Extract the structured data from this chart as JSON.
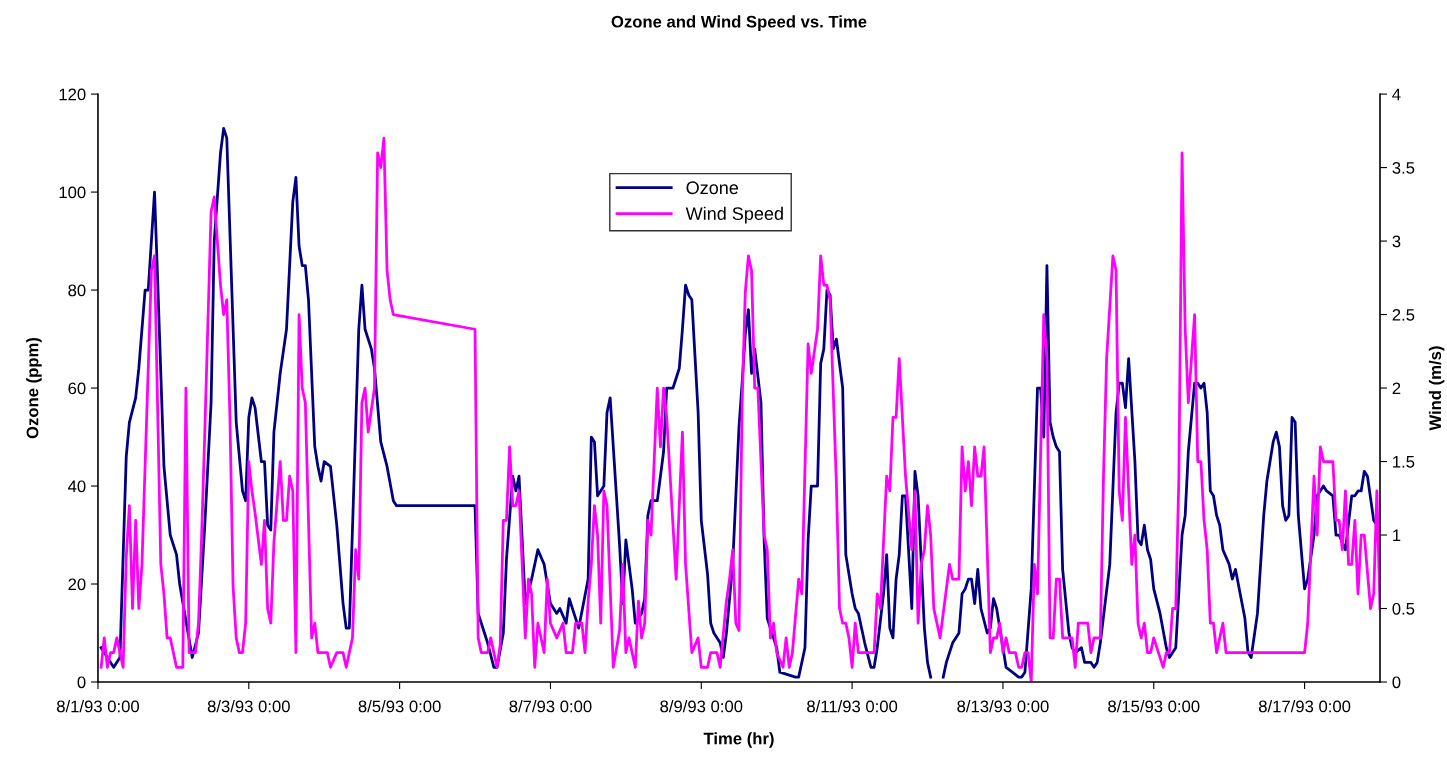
{
  "chart_data": {
    "type": "line",
    "title": "Ozone and Wind Speed vs. Time",
    "xlabel": "Time (hr)",
    "ylabel": "Ozone (ppm)",
    "y2label": "Wind (m/s)",
    "xlim": [
      "1993-08-01T00:00",
      "1993-08-18T00:00"
    ],
    "xticks": [
      {
        "value": "1993-08-01T00:00",
        "label": "8/1/93 0:00"
      },
      {
        "value": "1993-08-03T00:00",
        "label": "8/3/93 0:00"
      },
      {
        "value": "1993-08-05T00:00",
        "label": "8/5/93 0:00"
      },
      {
        "value": "1993-08-07T00:00",
        "label": "8/7/93 0:00"
      },
      {
        "value": "1993-08-09T00:00",
        "label": "8/9/93 0:00"
      },
      {
        "value": "1993-08-11T00:00",
        "label": "8/11/93 0:00"
      },
      {
        "value": "1993-08-13T00:00",
        "label": "8/13/93 0:00"
      },
      {
        "value": "1993-08-15T00:00",
        "label": "8/15/93 0:00"
      },
      {
        "value": "1993-08-17T00:00",
        "label": "8/17/93 0:00"
      }
    ],
    "ylim": [
      0,
      120
    ],
    "yticks": [
      0,
      20,
      40,
      60,
      80,
      100,
      120
    ],
    "y2lim": [
      0,
      4
    ],
    "y2ticks": [
      0,
      0.5,
      1,
      1.5,
      2,
      2.5,
      3,
      3.5,
      4
    ],
    "grid": false,
    "legend": "top",
    "marker": "none",
    "line_style": "solid",
    "series": [
      {
        "name": "Ozone",
        "color": "#000080",
        "x": [
          "1993-08-01T01:00",
          "1993-08-01T05:00",
          "1993-08-01T07:00",
          "1993-08-01T09:00",
          "1993-08-01T10:00",
          "1993-08-01T12:00",
          "1993-08-01T13:00",
          "1993-08-01T15:00",
          "1993-08-01T16:00",
          "1993-08-01T18:00",
          "1993-08-01T19:00",
          "1993-08-01T21:00",
          "1993-08-01T23:00",
          "1993-08-02T01:00",
          "1993-08-02T02:00",
          "1993-08-02T06:00",
          "1993-08-02T08:00",
          "1993-08-02T10:00",
          "1993-08-02T12:00",
          "1993-08-02T13:00",
          "1993-08-02T15:00",
          "1993-08-02T16:00",
          "1993-08-02T17:00",
          "1993-08-02T20:00",
          "1993-08-02T22:00",
          "1993-08-02T23:00",
          "1993-08-03T00:00",
          "1993-08-03T01:00",
          "1993-08-03T02:00",
          "1993-08-03T04:00",
          "1993-08-03T05:00",
          "1993-08-03T06:00",
          "1993-08-03T07:00",
          "1993-08-03T08:00",
          "1993-08-03T10:00",
          "1993-08-03T12:00",
          "1993-08-03T14:00",
          "1993-08-03T15:00",
          "1993-08-03T16:00",
          "1993-08-03T17:00",
          "1993-08-03T18:00",
          "1993-08-03T19:00",
          "1993-08-03T21:00",
          "1993-08-03T22:00",
          "1993-08-03T23:00",
          "1993-08-04T00:00",
          "1993-08-04T02:00",
          "1993-08-04T04:00",
          "1993-08-04T06:00",
          "1993-08-04T07:00",
          "1993-08-04T08:00",
          "1993-08-04T11:00",
          "1993-08-04T12:00",
          "1993-08-04T13:00",
          "1993-08-04T15:00",
          "1993-08-04T16:00",
          "1993-08-04T18:00",
          "1993-08-04T20:00",
          "1993-08-04T22:00",
          "1993-08-04T23:00",
          "1993-08-06T00:00",
          "1993-08-06T01:00",
          "1993-08-06T03:00",
          "1993-08-06T04:00",
          "1993-08-06T06:00",
          "1993-08-06T07:00",
          "1993-08-06T09:00",
          "1993-08-06T10:00",
          "1993-08-06T12:00",
          "1993-08-06T13:00",
          "1993-08-06T14:00",
          "1993-08-06T16:00",
          "1993-08-06T18:00",
          "1993-08-06T20:00",
          "1993-08-06T22:00",
          "1993-08-07T00:00",
          "1993-08-07T02:00",
          "1993-08-07T03:00",
          "1993-08-07T05:00",
          "1993-08-07T06:00",
          "1993-08-07T09:00",
          "1993-08-07T12:00",
          "1993-08-07T13:00",
          "1993-08-07T14:00",
          "1993-08-07T15:00",
          "1993-08-07T17:00",
          "1993-08-07T18:00",
          "1993-08-07T19:00",
          "1993-08-07T22:00",
          "1993-08-07T23:00",
          "1993-08-08T00:00",
          "1993-08-08T02:00",
          "1993-08-08T03:00",
          "1993-08-08T05:00",
          "1993-08-08T06:00",
          "1993-08-08T07:00",
          "1993-08-08T08:00",
          "1993-08-08T10:00",
          "1993-08-08T12:00",
          "1993-08-08T13:00",
          "1993-08-08T15:00",
          "1993-08-08T16:00",
          "1993-08-08T17:00",
          "1993-08-08T18:00",
          "1993-08-08T19:00",
          "1993-08-08T20:00",
          "1993-08-08T21:00",
          "1993-08-08T23:00",
          "1993-08-09T00:00",
          "1993-08-09T02:00",
          "1993-08-09T03:00",
          "1993-08-09T04:00",
          "1993-08-09T06:00",
          "1993-08-09T07:00",
          "1993-08-09T08:00",
          "1993-08-09T10:00",
          "1993-08-09T12:00",
          "1993-08-09T13:00",
          "1993-08-09T14:00",
          "1993-08-09T15:00",
          "1993-08-09T16:00",
          "1993-08-09T17:00",
          "1993-08-09T19:00",
          "1993-08-09T20:00",
          "1993-08-09T21:00",
          "1993-08-10T00:00",
          "1993-08-10T01:00",
          "1993-08-10T06:00",
          "1993-08-10T07:00",
          "1993-08-10T09:00",
          "1993-08-10T10:00",
          "1993-08-10T11:00",
          "1993-08-10T13:00",
          "1993-08-10T14:00",
          "1993-08-10T15:00",
          "1993-08-10T16:00",
          "1993-08-10T17:00",
          "1993-08-10T18:00",
          "1993-08-10T19:00",
          "1993-08-10T21:00",
          "1993-08-10T22:00",
          "1993-08-11T00:00",
          "1993-08-11T01:00",
          "1993-08-11T02:00",
          "1993-08-11T04:00",
          "1993-08-11T06:00",
          "1993-08-11T07:00",
          "1993-08-11T08:00",
          "1993-08-11T10:00",
          "1993-08-11T11:00",
          "1993-08-11T12:00",
          "1993-08-11T13:00",
          "1993-08-11T14:00",
          "1993-08-11T15:00",
          "1993-08-11T16:00",
          "1993-08-11T17:00",
          "1993-08-11T19:00",
          "1993-08-11T20:00",
          "1993-08-11T21:00",
          "1993-08-11T23:00",
          "1993-08-12T00:00",
          "1993-08-12T01:00",
          "1993-08-12T03:00",
          "1993-08-12T05:00",
          "1993-08-12T06:00",
          "1993-08-12T08:00",
          "1993-08-12T09:00",
          "1993-08-12T10:00",
          "1993-08-12T11:00",
          "1993-08-12T12:00",
          "1993-08-12T13:00",
          "1993-08-12T14:00",
          "1993-08-12T15:00",
          "1993-08-12T16:00",
          "1993-08-12T17:00",
          "1993-08-12T19:00",
          "1993-08-12T20:00",
          "1993-08-12T21:00",
          "1993-08-12T22:00",
          "1993-08-13T00:00",
          "1993-08-13T01:00",
          "1993-08-13T03:00",
          "1993-08-13T05:00",
          "1993-08-13T06:00",
          "1993-08-13T07:00",
          "1993-08-13T09:00",
          "1993-08-13T11:00",
          "1993-08-13T12:00",
          "1993-08-13T13:00",
          "1993-08-13T14:00",
          "1993-08-13T15:00",
          "1993-08-13T16:00",
          "1993-08-13T17:00",
          "1993-08-13T18:00",
          "1993-08-13T19:00",
          "1993-08-13T21:00",
          "1993-08-13T22:00",
          "1993-08-13T23:00",
          "1993-08-14T01:00",
          "1993-08-14T02:00",
          "1993-08-14T04:00",
          "1993-08-14T05:00",
          "1993-08-14T06:00",
          "1993-08-14T07:00",
          "1993-08-14T10:00",
          "1993-08-14T12:00",
          "1993-08-14T13:00",
          "1993-08-14T14:00",
          "1993-08-14T15:00",
          "1993-08-14T16:00",
          "1993-08-14T18:00",
          "1993-08-14T19:00",
          "1993-08-14T20:00",
          "1993-08-14T21:00",
          "1993-08-14T22:00",
          "1993-08-14T23:00",
          "1993-08-15T00:00",
          "1993-08-15T02:00",
          "1993-08-15T04:00",
          "1993-08-15T05:00",
          "1993-08-15T06:00",
          "1993-08-15T07:00",
          "1993-08-15T09:00",
          "1993-08-15T10:00",
          "1993-08-15T11:00",
          "1993-08-15T13:00",
          "1993-08-15T14:00",
          "1993-08-15T15:00",
          "1993-08-15T16:00",
          "1993-08-15T17:00",
          "1993-08-15T18:00",
          "1993-08-15T19:00",
          "1993-08-15T20:00",
          "1993-08-15T21:00",
          "1993-08-15T22:00",
          "1993-08-16T00:00",
          "1993-08-16T01:00",
          "1993-08-16T02:00",
          "1993-08-16T05:00",
          "1993-08-16T06:00",
          "1993-08-16T07:00",
          "1993-08-16T09:00",
          "1993-08-16T11:00",
          "1993-08-16T12:00",
          "1993-08-16T14:00",
          "1993-08-16T15:00",
          "1993-08-16T16:00",
          "1993-08-16T17:00",
          "1993-08-16T18:00",
          "1993-08-16T19:00",
          "1993-08-16T20:00",
          "1993-08-16T21:00",
          "1993-08-16T22:00",
          "1993-08-17T00:00",
          "1993-08-17T01:00",
          "1993-08-17T03:00",
          "1993-08-17T04:00",
          "1993-08-17T06:00",
          "1993-08-17T07:00",
          "1993-08-17T09:00",
          "1993-08-17T10:00",
          "1993-08-17T11:00",
          "1993-08-17T13:00",
          "1993-08-17T15:00",
          "1993-08-17T16:00",
          "1993-08-17T17:00",
          "1993-08-17T18:00",
          "1993-08-17T19:00",
          "1993-08-17T20:00",
          "1993-08-17T22:00",
          "1993-08-18T00:00"
        ],
        "values": [
          7,
          3,
          5,
          46,
          53,
          58,
          64,
          80,
          80,
          100,
          82,
          44,
          30,
          26,
          20,
          5,
          10,
          32,
          57,
          90,
          108,
          113,
          111,
          53,
          39,
          37,
          54,
          58,
          56,
          45,
          45,
          32,
          31,
          51,
          63,
          72,
          98,
          103,
          89,
          85,
          85,
          78,
          48,
          44,
          41,
          45,
          44,
          32,
          16,
          11,
          11,
          72,
          81,
          72,
          68,
          64,
          49,
          44,
          37,
          36,
          36,
          14,
          10,
          8,
          3,
          3,
          10,
          25,
          42,
          39,
          42,
          16,
          21,
          27,
          24,
          16,
          14,
          15,
          12,
          17,
          11,
          21,
          50,
          49,
          38,
          40,
          55,
          58,
          28,
          16,
          29,
          19,
          12,
          14,
          17,
          34,
          37,
          37,
          47,
          60,
          60,
          62,
          64,
          72,
          81,
          79,
          78,
          55,
          33,
          22,
          12,
          10,
          8,
          5,
          10,
          24,
          52,
          61,
          71,
          76,
          63,
          68,
          57,
          29,
          13,
          7,
          2,
          1,
          1,
          7,
          29,
          40,
          40,
          65,
          68,
          80,
          79,
          68,
          70,
          60,
          26,
          18,
          15,
          14,
          8,
          3,
          3,
          7,
          18,
          26,
          11,
          9,
          21,
          26,
          38,
          38,
          15,
          43,
          38,
          11,
          4,
          1,
          null,
          1,
          4,
          8,
          9,
          10,
          18,
          19,
          21,
          21,
          16,
          23,
          15,
          10,
          11,
          17,
          15,
          7,
          3,
          2,
          1,
          1,
          2,
          19,
          60,
          60,
          50,
          85,
          53,
          50,
          48,
          47,
          23,
          10,
          7,
          6,
          7,
          4,
          4,
          3,
          4,
          8,
          24,
          55,
          61,
          61,
          56,
          66,
          45,
          29,
          28,
          32,
          27,
          25,
          19,
          14,
          7,
          5,
          6,
          7,
          30,
          34,
          47,
          61,
          61,
          60,
          61,
          55,
          39,
          38,
          34,
          32,
          27,
          24,
          21,
          23,
          13,
          6,
          5,
          14,
          34,
          41,
          49,
          51,
          48,
          36,
          33,
          34,
          54,
          53,
          34,
          19,
          21,
          30,
          38,
          40,
          39,
          38,
          30,
          30,
          27,
          38,
          38,
          39,
          39,
          43,
          42,
          33,
          31
        ]
      },
      {
        "name": "Wind Speed",
        "color": "#ff00ff",
        "axis": "y2",
        "x": [
          "1993-08-01T01:00",
          "1993-08-01T02:00",
          "1993-08-01T03:00",
          "1993-08-01T04:00",
          "1993-08-01T05:00",
          "1993-08-01T06:00",
          "1993-08-01T07:00",
          "1993-08-01T08:00",
          "1993-08-01T09:00",
          "1993-08-01T10:00",
          "1993-08-01T11:00",
          "1993-08-01T12:00",
          "1993-08-01T13:00",
          "1993-08-01T14:00",
          "1993-08-01T17:00",
          "1993-08-01T18:00",
          "1993-08-01T19:00",
          "1993-08-01T20:00",
          "1993-08-01T21:00",
          "1993-08-01T22:00",
          "1993-08-01T23:00",
          "1993-08-02T01:00",
          "1993-08-02T03:00",
          "1993-08-02T04:00",
          "1993-08-02T05:00",
          "1993-08-02T07:00",
          "1993-08-02T08:00",
          "1993-08-02T09:00",
          "1993-08-02T10:00",
          "1993-08-02T12:00",
          "1993-08-02T13:00",
          "1993-08-02T15:00",
          "1993-08-02T16:00",
          "1993-08-02T17:00",
          "1993-08-02T18:00",
          "1993-08-02T19:00",
          "1993-08-02T20:00",
          "1993-08-02T21:00",
          "1993-08-02T22:00",
          "1993-08-02T23:00",
          "1993-08-03T00:00",
          "1993-08-03T01:00",
          "1993-08-03T02:00",
          "1993-08-03T04:00",
          "1993-08-03T05:00",
          "1993-08-03T06:00",
          "1993-08-03T07:00",
          "1993-08-03T08:00",
          "1993-08-03T10:00",
          "1993-08-03T11:00",
          "1993-08-03T12:00",
          "1993-08-03T13:00",
          "1993-08-03T14:00",
          "1993-08-03T15:00",
          "1993-08-03T16:00",
          "1993-08-03T17:00",
          "1993-08-03T18:00",
          "1993-08-03T20:00",
          "1993-08-03T21:00",
          "1993-08-03T22:00",
          "1993-08-04T01:00",
          "1993-08-04T02:00",
          "1993-08-04T04:00",
          "1993-08-04T06:00",
          "1993-08-04T07:00",
          "1993-08-04T09:00",
          "1993-08-04T10:00",
          "1993-08-04T11:00",
          "1993-08-04T12:00",
          "1993-08-04T13:00",
          "1993-08-04T14:00",
          "1993-08-04T16:00",
          "1993-08-04T17:00",
          "1993-08-04T18:00",
          "1993-08-04T19:00",
          "1993-08-04T20:00",
          "1993-08-04T21:00",
          "1993-08-04T22:00",
          "1993-08-06T00:00",
          "1993-08-06T01:00",
          "1993-08-06T02:00",
          "1993-08-06T04:00",
          "1993-08-06T05:00",
          "1993-08-06T07:00",
          "1993-08-06T08:00",
          "1993-08-06T09:00",
          "1993-08-06T10:00",
          "1993-08-06T11:00",
          "1993-08-06T12:00",
          "1993-08-06T13:00",
          "1993-08-06T14:00",
          "1993-08-06T15:00",
          "1993-08-06T16:00",
          "1993-08-06T17:00",
          "1993-08-06T18:00",
          "1993-08-06T19:00",
          "1993-08-06T20:00",
          "1993-08-06T22:00",
          "1993-08-06T23:00",
          "1993-08-07T00:00",
          "1993-08-07T02:00",
          "1993-08-07T04:00",
          "1993-08-07T05:00",
          "1993-08-07T07:00",
          "1993-08-07T08:00",
          "1993-08-07T10:00",
          "1993-08-07T11:00",
          "1993-08-07T12:00",
          "1993-08-07T13:00",
          "1993-08-07T14:00",
          "1993-08-07T15:00",
          "1993-08-07T16:00",
          "1993-08-07T17:00",
          "1993-08-07T18:00",
          "1993-08-07T20:00",
          "1993-08-07T22:00",
          "1993-08-07T23:00",
          "1993-08-08T00:00",
          "1993-08-08T01:00",
          "1993-08-08T02:00",
          "1993-08-08T03:00",
          "1993-08-08T04:00",
          "1993-08-08T05:00",
          "1993-08-08T06:00",
          "1993-08-08T07:00",
          "1993-08-08T08:00",
          "1993-08-08T10:00",
          "1993-08-08T11:00",
          "1993-08-08T12:00",
          "1993-08-08T13:00",
          "1993-08-08T16:00",
          "1993-08-08T18:00",
          "1993-08-08T19:00",
          "1993-08-08T21:00",
          "1993-08-08T23:00",
          "1993-08-09T00:00",
          "1993-08-09T02:00",
          "1993-08-09T03:00",
          "1993-08-09T05:00",
          "1993-08-09T06:00",
          "1993-08-09T08:00",
          "1993-08-09T09:00",
          "1993-08-09T10:00",
          "1993-08-09T11:00",
          "1993-08-09T12:00",
          "1993-08-09T13:00",
          "1993-08-09T14:00",
          "1993-08-09T15:00",
          "1993-08-09T16:00",
          "1993-08-09T17:00",
          "1993-08-09T18:00",
          "1993-08-09T20:00",
          "1993-08-09T21:00",
          "1993-08-09T22:00",
          "1993-08-09T23:00",
          "1993-08-10T00:00",
          "1993-08-10T02:00",
          "1993-08-10T03:00",
          "1993-08-10T04:00",
          "1993-08-10T05:00",
          "1993-08-10T07:00",
          "1993-08-10T08:00",
          "1993-08-10T10:00",
          "1993-08-10T11:00",
          "1993-08-10T13:00",
          "1993-08-10T14:00",
          "1993-08-10T15:00",
          "1993-08-10T16:00",
          "1993-08-10T17:00",
          "1993-08-10T19:00",
          "1993-08-10T20:00",
          "1993-08-10T21:00",
          "1993-08-10T22:00",
          "1993-08-10T23:00",
          "1993-08-11T00:00",
          "1993-08-11T01:00",
          "1993-08-11T02:00",
          "1993-08-11T07:00",
          "1993-08-11T08:00",
          "1993-08-11T09:00",
          "1993-08-11T11:00",
          "1993-08-11T12:00",
          "1993-08-11T13:00",
          "1993-08-11T14:00",
          "1993-08-11T15:00",
          "1993-08-11T17:00",
          "1993-08-11T19:00",
          "1993-08-11T20:00",
          "1993-08-11T21:00",
          "1993-08-11T22:00",
          "1993-08-11T23:00",
          "1993-08-12T00:00",
          "1993-08-12T01:00",
          "1993-08-12T02:00",
          "1993-08-12T04:00",
          "1993-08-12T07:00",
          "1993-08-12T08:00",
          "1993-08-12T10:00",
          "1993-08-12T11:00",
          "1993-08-12T12:00",
          "1993-08-12T13:00",
          "1993-08-12T14:00",
          "1993-08-12T15:00",
          "1993-08-12T16:00",
          "1993-08-12T17:00",
          "1993-08-12T18:00",
          "1993-08-12T20:00",
          "1993-08-12T21:00",
          "1993-08-12T22:00",
          "1993-08-12T23:00",
          "1993-08-13T00:00",
          "1993-08-13T01:00",
          "1993-08-13T02:00",
          "1993-08-13T04:00",
          "1993-08-13T05:00",
          "1993-08-13T06:00",
          "1993-08-13T07:00",
          "1993-08-13T08:00",
          "1993-08-13T09:00",
          "1993-08-13T10:00",
          "1993-08-13T11:00",
          "1993-08-13T13:00",
          "1993-08-13T14:00",
          "1993-08-13T15:00",
          "1993-08-13T16:00",
          "1993-08-13T17:00",
          "1993-08-13T18:00",
          "1993-08-13T19:00",
          "1993-08-13T22:00",
          "1993-08-13T23:00",
          "1993-08-14T00:00",
          "1993-08-14T03:00",
          "1993-08-14T04:00",
          "1993-08-14T05:00",
          "1993-08-14T07:00",
          "1993-08-14T08:00",
          "1993-08-14T09:00",
          "1993-08-14T11:00",
          "1993-08-14T12:00",
          "1993-08-14T13:00",
          "1993-08-14T14:00",
          "1993-08-14T15:00",
          "1993-08-14T17:00",
          "1993-08-14T18:00",
          "1993-08-14T19:00",
          "1993-08-14T20:00",
          "1993-08-14T21:00",
          "1993-08-14T22:00",
          "1993-08-14T23:00",
          "1993-08-15T00:00",
          "1993-08-15T03:00",
          "1993-08-15T04:00",
          "1993-08-15T05:00",
          "1993-08-15T06:00",
          "1993-08-15T07:00",
          "1993-08-15T08:00",
          "1993-08-15T09:00",
          "1993-08-15T10:00",
          "1993-08-15T11:00",
          "1993-08-15T13:00",
          "1993-08-15T14:00",
          "1993-08-15T15:00",
          "1993-08-15T16:00",
          "1993-08-15T17:00",
          "1993-08-15T18:00",
          "1993-08-15T19:00",
          "1993-08-15T20:00",
          "1993-08-15T22:00",
          "1993-08-15T23:00",
          "1993-08-17T00:00",
          "1993-08-17T01:00",
          "1993-08-17T03:00",
          "1993-08-17T04:00",
          "1993-08-17T05:00",
          "1993-08-17T06:00",
          "1993-08-17T09:00",
          "1993-08-17T10:00",
          "1993-08-17T11:00",
          "1993-08-17T12:00",
          "1993-08-17T13:00",
          "1993-08-17T14:00",
          "1993-08-17T15:00",
          "1993-08-17T16:00",
          "1993-08-17T17:00",
          "1993-08-17T18:00",
          "1993-08-17T19:00",
          "1993-08-17T21:00",
          "1993-08-17T22:00",
          "1993-08-17T23:00",
          "1993-08-18T00:00"
        ],
        "values": [
          0.1,
          0.3,
          0.1,
          0.2,
          0.2,
          0.3,
          0.2,
          0.1,
          0.85,
          1.2,
          0.5,
          1.1,
          0.5,
          0.8,
          2.8,
          2.9,
          1.85,
          0.8,
          0.6,
          0.3,
          0.3,
          0.1,
          0.1,
          2.0,
          0.2,
          0.2,
          0.4,
          1.0,
          1.7,
          3.2,
          3.3,
          2.7,
          2.5,
          2.6,
          1.8,
          0.65,
          0.3,
          0.2,
          0.2,
          0.4,
          1.5,
          1.3,
          1.15,
          0.8,
          1.1,
          0.5,
          0.4,
          0.95,
          1.5,
          1.1,
          1.1,
          1.4,
          1.3,
          0.2,
          2.5,
          2.0,
          1.9,
          0.3,
          0.4,
          0.2,
          0.2,
          0.1,
          0.2,
          0.2,
          0.1,
          0.3,
          0.9,
          0.7,
          1.9,
          2.0,
          1.7,
          2.0,
          3.6,
          3.5,
          3.7,
          2.8,
          2.6,
          2.5,
          2.4,
          0.3,
          0.2,
          0.2,
          0.3,
          0.1,
          0.25,
          1.1,
          1.1,
          1.6,
          1.2,
          1.2,
          1.3,
          0.8,
          0.3,
          0.7,
          0.6,
          0.1,
          0.4,
          0.2,
          0.7,
          0.4,
          0.3,
          0.4,
          0.2,
          0.2,
          0.4,
          0.4,
          0.2,
          0.55,
          0.8,
          1.2,
          1.0,
          0.4,
          1.3,
          1.2,
          0.1,
          0.35,
          0.8,
          0.2,
          0.3,
          0.2,
          0.1,
          0.55,
          0.3,
          0.4,
          1.1,
          1.0,
          2.0,
          1.6,
          2.0,
          1.8,
          0.7,
          1.7,
          0.8,
          0.2,
          0.3,
          0.1,
          0.1,
          0.2,
          0.2,
          0.1,
          0.55,
          0.7,
          0.9,
          0.4,
          0.35,
          1.9,
          2.65,
          2.9,
          2.8,
          2.0,
          2.0,
          1.0,
          0.9,
          0.3,
          0.4,
          0.2,
          0.1,
          0.3,
          0.1,
          0.2,
          0.7,
          0.6,
          2.3,
          2.1,
          2.4,
          2.9,
          2.7,
          2.7,
          2.6,
          1.35,
          0.5,
          0.4,
          0.4,
          0.3,
          0.1,
          0.4,
          0.2,
          0.2,
          0.6,
          0.5,
          1.4,
          1.3,
          1.8,
          1.8,
          2.2,
          1.4,
          0.9,
          1.3,
          0.4,
          0.8,
          0.9,
          1.2,
          1.0,
          0.5,
          0.3,
          0.8,
          0.7,
          0.7,
          1.6,
          1.3,
          1.5,
          1.2,
          1.6,
          1.4,
          1.4,
          1.6,
          0.2,
          0.3,
          0.3,
          0.4,
          0.2,
          0.3,
          0.2,
          0.2,
          0.1,
          0.1,
          0.2,
          0.2,
          0.0,
          0.8,
          0.6,
          2.5,
          2.2,
          0.3,
          0.3,
          0.7,
          0.7,
          0.3,
          0.3,
          0.1,
          0.4,
          0.4,
          0.2,
          0.3,
          0.3,
          1.4,
          2.2,
          2.9,
          2.8,
          1.3,
          1.1,
          1.8,
          0.8,
          1.0,
          0.4,
          0.3,
          0.4,
          0.2,
          0.2,
          0.3,
          0.1,
          0.2,
          0.2,
          0.5,
          0.5,
          1.4,
          3.6,
          2.4,
          1.9,
          2.5,
          1.5,
          1.5,
          1.1,
          0.9,
          0.4,
          0.4,
          0.2,
          0.4,
          0.2,
          0.2,
          0.4,
          1.4,
          1.0,
          1.6,
          1.5,
          1.5,
          1.1,
          1.1,
          0.9,
          1.3,
          0.8,
          0.8,
          1.1,
          0.6,
          1.0,
          1.0,
          0.5,
          0.6,
          1.3,
          0.5
        ]
      }
    ]
  }
}
